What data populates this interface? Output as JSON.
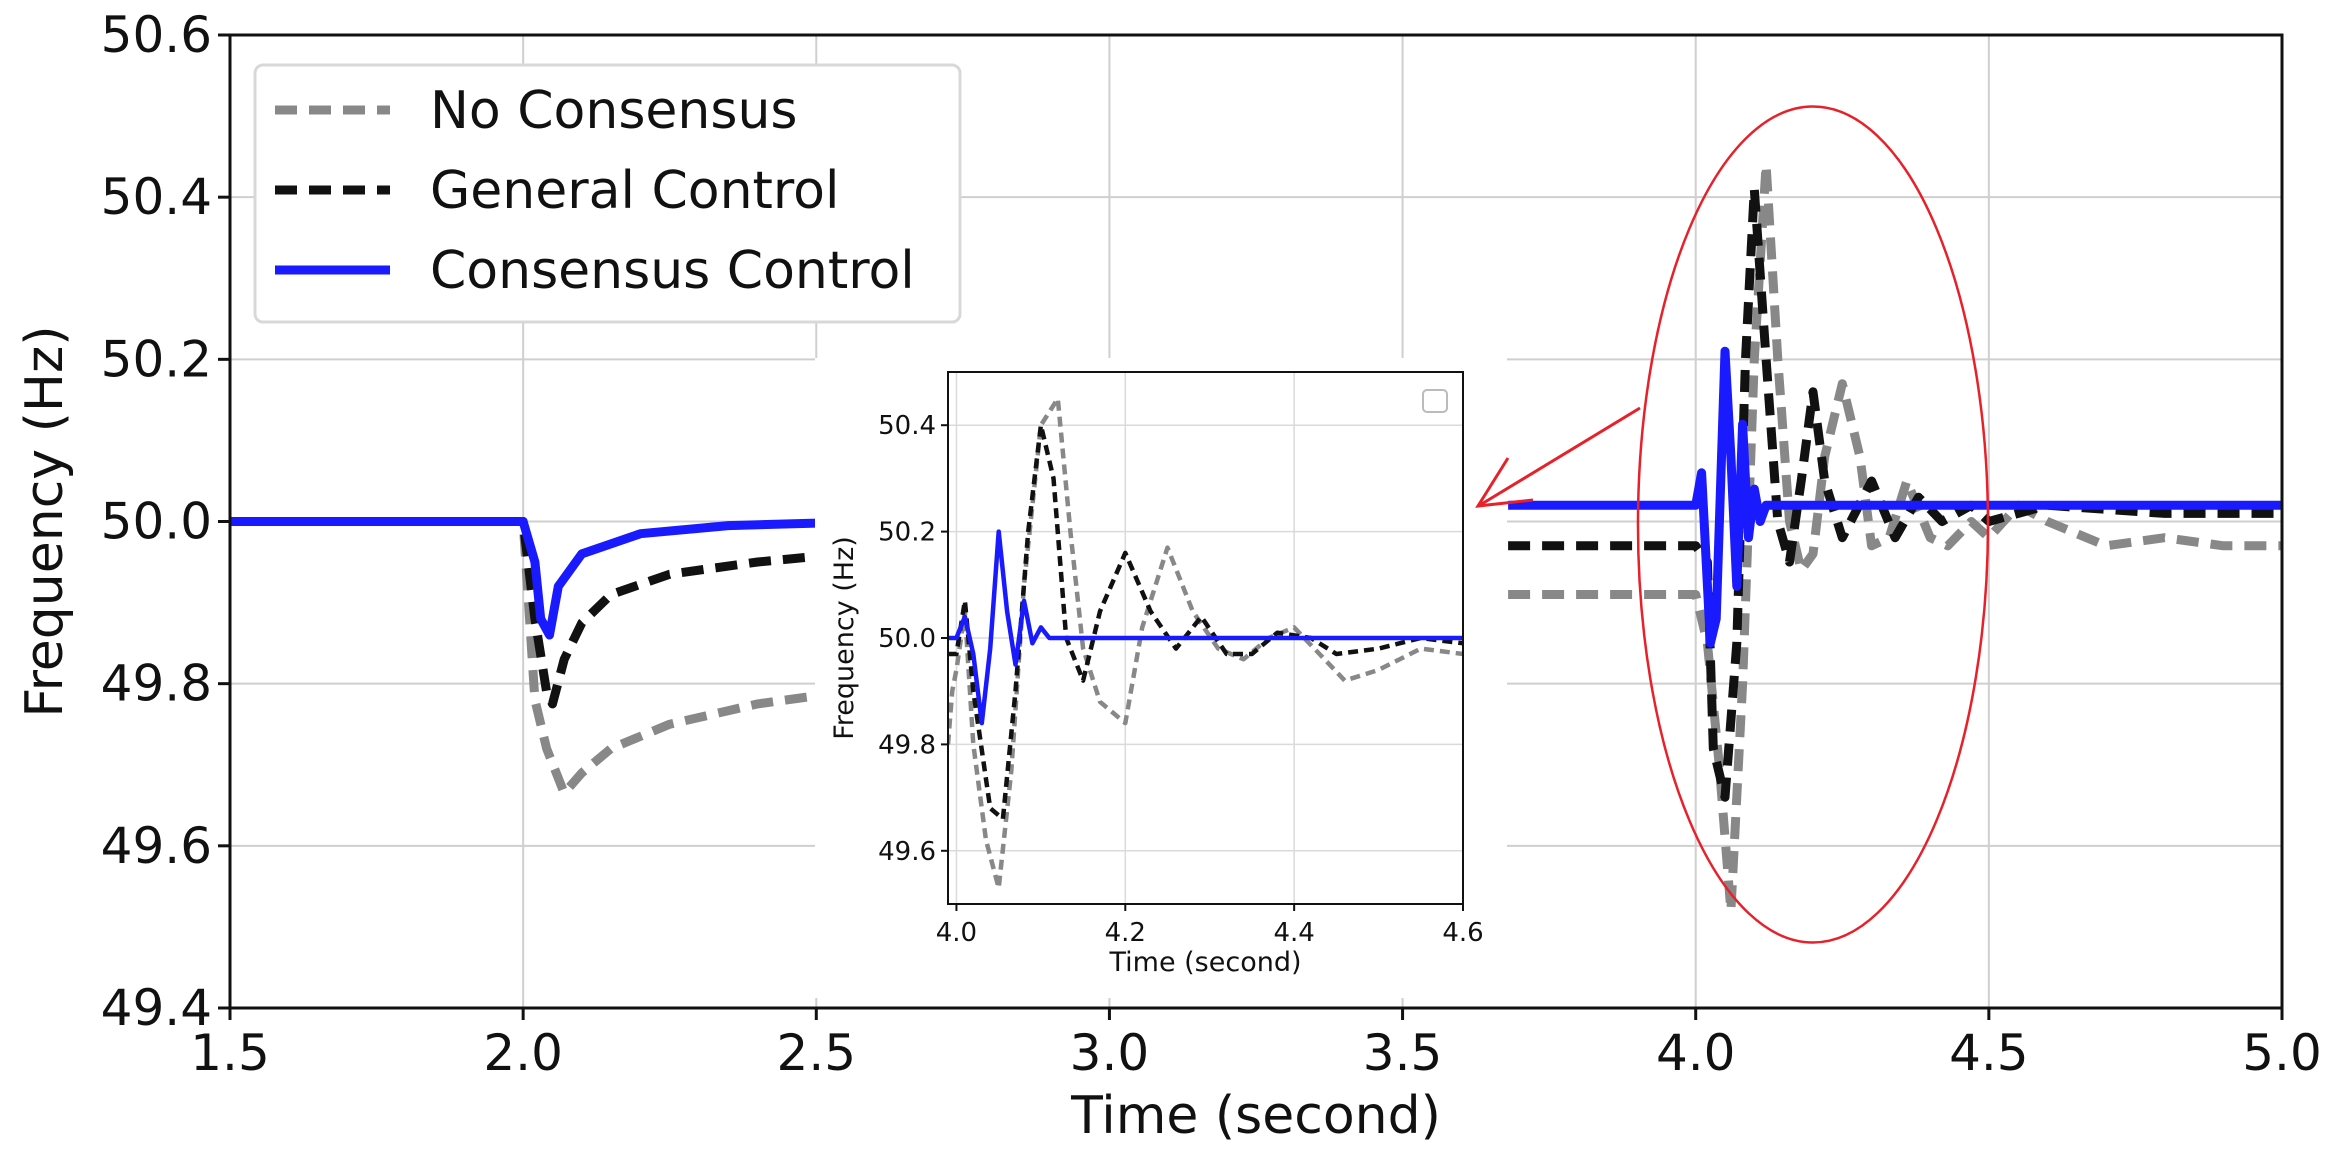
{
  "chart_data": [
    {
      "id": "main",
      "type": "line",
      "title": "",
      "xlabel": "Time (second)",
      "ylabel": "Frequency (Hz)",
      "xlim": [
        1.5,
        5.0
      ],
      "ylim": [
        49.4,
        50.6
      ],
      "xticks": [
        1.5,
        2.0,
        2.5,
        3.0,
        3.5,
        4.0,
        4.5,
        5.0
      ],
      "xtick_labels": [
        "1.5",
        "2.0",
        "2.5",
        "3.0",
        "3.5",
        "4.0",
        "4.5",
        "5.0"
      ],
      "yticks": [
        49.4,
        49.6,
        49.8,
        50.0,
        50.2,
        50.4,
        50.6
      ],
      "ytick_labels": [
        "49.4",
        "49.6",
        "49.8",
        "50.0",
        "50.2",
        "50.4",
        "50.6"
      ],
      "grid": true,
      "legend_position": "top-left",
      "series": [
        {
          "name": "No Consensus",
          "color": "#888888",
          "style": "dashed",
          "points": [
            [
              1.5,
              50.0
            ],
            [
              2.0,
              50.0
            ],
            [
              2.02,
              49.78
            ],
            [
              2.04,
              49.72
            ],
            [
              2.07,
              49.665
            ],
            [
              2.1,
              49.69
            ],
            [
              2.15,
              49.72
            ],
            [
              2.25,
              49.75
            ],
            [
              2.4,
              49.775
            ],
            [
              2.5,
              49.785
            ],
            [
              3.68,
              49.91
            ],
            [
              4.0,
              49.91
            ],
            [
              4.02,
              49.85
            ],
            [
              4.04,
              49.7
            ],
            [
              4.06,
              49.52
            ],
            [
              4.08,
              49.8
            ],
            [
              4.1,
              50.2
            ],
            [
              4.12,
              50.44
            ],
            [
              4.14,
              50.2
            ],
            [
              4.16,
              50.0
            ],
            [
              4.18,
              49.94
            ],
            [
              4.2,
              49.96
            ],
            [
              4.22,
              50.08
            ],
            [
              4.25,
              50.17
            ],
            [
              4.28,
              50.08
            ],
            [
              4.3,
              49.97
            ],
            [
              4.33,
              49.98
            ],
            [
              4.36,
              50.05
            ],
            [
              4.4,
              49.98
            ],
            [
              4.43,
              49.97
            ],
            [
              4.47,
              50.0
            ],
            [
              4.5,
              49.98
            ],
            [
              4.55,
              50.02
            ],
            [
              4.6,
              50.0
            ],
            [
              4.7,
              49.97
            ],
            [
              4.8,
              49.98
            ],
            [
              4.9,
              49.97
            ],
            [
              5.0,
              49.97
            ]
          ]
        },
        {
          "name": "General Control",
          "color": "#111111",
          "style": "dashed",
          "points": [
            [
              1.5,
              50.0
            ],
            [
              2.0,
              50.0
            ],
            [
              2.02,
              49.88
            ],
            [
              2.04,
              49.79
            ],
            [
              2.05,
              49.775
            ],
            [
              2.07,
              49.83
            ],
            [
              2.1,
              49.875
            ],
            [
              2.15,
              49.91
            ],
            [
              2.25,
              49.935
            ],
            [
              2.4,
              49.95
            ],
            [
              2.5,
              49.957
            ],
            [
              3.68,
              49.97
            ],
            [
              4.0,
              49.97
            ],
            [
              4.02,
              49.95
            ],
            [
              4.03,
              49.72
            ],
            [
              4.05,
              49.66
            ],
            [
              4.07,
              49.85
            ],
            [
              4.085,
              50.2
            ],
            [
              4.1,
              50.41
            ],
            [
              4.12,
              50.2
            ],
            [
              4.14,
              50.0
            ],
            [
              4.16,
              49.95
            ],
            [
              4.18,
              50.05
            ],
            [
              4.2,
              50.16
            ],
            [
              4.22,
              50.05
            ],
            [
              4.25,
              49.98
            ],
            [
              4.3,
              50.05
            ],
            [
              4.34,
              49.98
            ],
            [
              4.38,
              50.03
            ],
            [
              4.42,
              50.0
            ],
            [
              4.47,
              50.02
            ],
            [
              4.5,
              50.0
            ],
            [
              4.6,
              50.02
            ],
            [
              4.8,
              50.01
            ],
            [
              5.0,
              50.01
            ]
          ]
        },
        {
          "name": "Consensus Control",
          "color": "#1a1aff",
          "style": "solid",
          "points": [
            [
              1.5,
              50.0
            ],
            [
              2.0,
              50.0
            ],
            [
              2.02,
              49.95
            ],
            [
              2.03,
              49.88
            ],
            [
              2.045,
              49.86
            ],
            [
              2.06,
              49.92
            ],
            [
              2.1,
              49.96
            ],
            [
              2.2,
              49.985
            ],
            [
              2.35,
              49.995
            ],
            [
              2.5,
              49.998
            ],
            [
              3.68,
              50.02
            ],
            [
              4.0,
              50.02
            ],
            [
              4.01,
              50.06
            ],
            [
              4.025,
              49.85
            ],
            [
              4.035,
              49.88
            ],
            [
              4.05,
              50.21
            ],
            [
              4.06,
              50.08
            ],
            [
              4.07,
              49.92
            ],
            [
              4.08,
              50.12
            ],
            [
              4.09,
              49.98
            ],
            [
              4.1,
              50.04
            ],
            [
              4.11,
              50.0
            ],
            [
              4.12,
              50.02
            ],
            [
              4.2,
              50.02
            ],
            [
              4.5,
              50.02
            ],
            [
              5.0,
              50.02
            ]
          ]
        }
      ],
      "annotations": [
        {
          "type": "ellipse",
          "label": "",
          "center": [
            4.2,
            50.0
          ],
          "color": "#e8202a"
        },
        {
          "type": "arrow",
          "label": "",
          "color": "#e8202a"
        }
      ]
    },
    {
      "id": "inset",
      "type": "line",
      "title": "",
      "xlabel": "Time (second)",
      "ylabel": "Frequency (Hz)",
      "xlim": [
        3.99,
        4.6
      ],
      "ylim": [
        49.5,
        50.5
      ],
      "xticks": [
        4.0,
        4.2,
        4.4,
        4.6
      ],
      "xtick_labels": [
        "4.0",
        "4.2",
        "4.4",
        "4.6"
      ],
      "yticks": [
        49.6,
        49.8,
        50.0,
        50.2,
        50.4
      ],
      "ytick_labels": [
        "49.6",
        "49.8",
        "50.0",
        "50.2",
        "50.4"
      ],
      "grid": true,
      "legend_position": "top-right",
      "series": [
        {
          "name": "No Consensus",
          "color": "#888888",
          "style": "dashed",
          "points": [
            [
              3.99,
              49.8
            ],
            [
              3.995,
              49.9
            ],
            [
              4.0,
              49.94
            ],
            [
              4.01,
              50.05
            ],
            [
              4.02,
              49.8
            ],
            [
              4.035,
              49.62
            ],
            [
              4.05,
              49.53
            ],
            [
              4.065,
              49.75
            ],
            [
              4.08,
              50.1
            ],
            [
              4.1,
              50.4
            ],
            [
              4.12,
              50.45
            ],
            [
              4.135,
              50.2
            ],
            [
              4.15,
              49.98
            ],
            [
              4.17,
              49.88
            ],
            [
              4.2,
              49.84
            ],
            [
              4.22,
              50.02
            ],
            [
              4.25,
              50.17
            ],
            [
              4.28,
              50.05
            ],
            [
              4.31,
              49.98
            ],
            [
              4.34,
              49.96
            ],
            [
              4.37,
              50.0
            ],
            [
              4.4,
              50.02
            ],
            [
              4.43,
              49.97
            ],
            [
              4.46,
              49.92
            ],
            [
              4.5,
              49.94
            ],
            [
              4.55,
              49.98
            ],
            [
              4.6,
              49.97
            ]
          ]
        },
        {
          "name": "General Control",
          "color": "#111111",
          "style": "dashed",
          "points": [
            [
              3.99,
              49.97
            ],
            [
              4.0,
              49.97
            ],
            [
              4.01,
              50.07
            ],
            [
              4.02,
              49.9
            ],
            [
              4.04,
              49.68
            ],
            [
              4.055,
              49.66
            ],
            [
              4.07,
              49.9
            ],
            [
              4.085,
              50.2
            ],
            [
              4.1,
              50.4
            ],
            [
              4.115,
              50.3
            ],
            [
              4.13,
              50.0
            ],
            [
              4.15,
              49.92
            ],
            [
              4.17,
              50.05
            ],
            [
              4.2,
              50.16
            ],
            [
              4.23,
              50.05
            ],
            [
              4.26,
              49.98
            ],
            [
              4.29,
              50.04
            ],
            [
              4.32,
              49.97
            ],
            [
              4.35,
              49.97
            ],
            [
              4.38,
              50.01
            ],
            [
              4.42,
              50.0
            ],
            [
              4.45,
              49.97
            ],
            [
              4.5,
              49.98
            ],
            [
              4.55,
              50.0
            ],
            [
              4.6,
              49.99
            ]
          ]
        },
        {
          "name": "Consensus Control",
          "color": "#1a1aff",
          "style": "solid",
          "points": [
            [
              3.99,
              50.0
            ],
            [
              4.0,
              50.0
            ],
            [
              4.01,
              50.04
            ],
            [
              4.02,
              49.97
            ],
            [
              4.03,
              49.84
            ],
            [
              4.04,
              49.98
            ],
            [
              4.05,
              50.2
            ],
            [
              4.06,
              50.05
            ],
            [
              4.07,
              49.95
            ],
            [
              4.08,
              50.07
            ],
            [
              4.09,
              49.99
            ],
            [
              4.1,
              50.02
            ],
            [
              4.11,
              50.0
            ],
            [
              4.2,
              50.0
            ],
            [
              4.4,
              50.0
            ],
            [
              4.6,
              50.0
            ]
          ]
        }
      ]
    }
  ],
  "legend": {
    "items": [
      {
        "label": "No Consensus",
        "color": "#888888",
        "style": "dashed"
      },
      {
        "label": "General Control",
        "color": "#111111",
        "style": "dashed"
      },
      {
        "label": "Consensus Control",
        "color": "#1a1aff",
        "style": "solid"
      }
    ]
  }
}
